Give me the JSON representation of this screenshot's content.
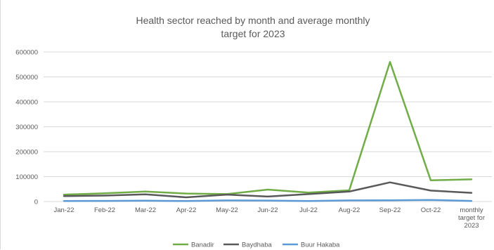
{
  "chart_data": {
    "type": "line",
    "title": "Health sector reached by month and average monthly target for 2023",
    "title_lines": [
      "Health sector reached by month and average monthly",
      "target for 2023"
    ],
    "categories": [
      "Jan-22",
      "Feb-22",
      "Mar-22",
      "Apr-22",
      "May-22",
      "Jun-22",
      "Jul-22",
      "Aug-22",
      "Sep-22",
      "Oct-22",
      "monthly target for 2023"
    ],
    "category_lines": [
      [
        "Jan-22"
      ],
      [
        "Feb-22"
      ],
      [
        "Mar-22"
      ],
      [
        "Apr-22"
      ],
      [
        "May-22"
      ],
      [
        "Jun-22"
      ],
      [
        "Jul-22"
      ],
      [
        "Aug-22"
      ],
      [
        "Sep-22"
      ],
      [
        "Oct-22"
      ],
      [
        "monthly",
        "target for",
        "2023"
      ]
    ],
    "yticks": [
      "0",
      "100000",
      "200000",
      "300000",
      "400000",
      "500000",
      "600000"
    ],
    "ylim": [
      0,
      600000
    ],
    "xlabel": "",
    "ylabel": "",
    "grid": true,
    "legend_position": "bottom",
    "series": [
      {
        "name": "Banadir",
        "color": "#70ad47",
        "values": [
          28000,
          33000,
          40000,
          32000,
          30000,
          48000,
          36000,
          45000,
          560000,
          85000,
          89000
        ]
      },
      {
        "name": "Baydhaba",
        "color": "#595959",
        "values": [
          22000,
          24000,
          29000,
          17000,
          28000,
          20000,
          30000,
          40000,
          77000,
          44000,
          35000
        ]
      },
      {
        "name": "Buur Hakaba",
        "color": "#5b9bd5",
        "values": [
          2000,
          2500,
          3500,
          2000,
          4500,
          4000,
          2000,
          4500,
          5000,
          6500,
          2500
        ]
      }
    ]
  }
}
